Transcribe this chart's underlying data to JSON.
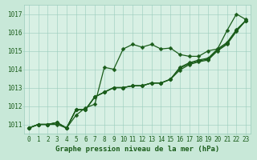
{
  "xlabel": "Graphe pression niveau de la mer (hPa)",
  "background_color": "#c8e8d8",
  "plot_bg_color": "#d8f0e4",
  "grid_color": "#99ccbb",
  "line_color": "#1a5c1a",
  "ylim": [
    1010.5,
    1017.5
  ],
  "xlim": [
    -0.5,
    23.5
  ],
  "yticks": [
    1011,
    1012,
    1013,
    1014,
    1015,
    1016,
    1017
  ],
  "xticks": [
    0,
    1,
    2,
    3,
    4,
    5,
    6,
    7,
    8,
    9,
    10,
    11,
    12,
    13,
    14,
    15,
    16,
    17,
    18,
    19,
    20,
    21,
    22,
    23
  ],
  "series": [
    [
      1010.8,
      1011.0,
      1011.0,
      1011.0,
      1010.8,
      1011.5,
      1011.9,
      1012.1,
      1014.1,
      1014.0,
      1015.1,
      1015.35,
      1015.2,
      1015.35,
      1015.1,
      1015.15,
      1014.8,
      1014.7,
      1014.7,
      1015.0,
      1015.1,
      1016.1,
      1017.0,
      1016.7
    ],
    [
      1010.8,
      1011.0,
      1011.0,
      1011.1,
      1010.8,
      1011.8,
      1011.8,
      1012.5,
      1012.75,
      1013.0,
      1013.0,
      1013.1,
      1013.1,
      1013.25,
      1013.25,
      1013.45,
      1013.95,
      1014.25,
      1014.4,
      1014.5,
      1015.0,
      1015.35,
      1016.05,
      1016.65
    ],
    [
      1010.8,
      1011.0,
      1011.0,
      1011.1,
      1010.8,
      1011.8,
      1011.8,
      1012.5,
      1012.75,
      1013.0,
      1013.0,
      1013.1,
      1013.1,
      1013.25,
      1013.25,
      1013.45,
      1014.05,
      1014.3,
      1014.45,
      1014.55,
      1015.05,
      1015.4,
      1016.1,
      1016.65
    ],
    [
      1010.8,
      1011.0,
      1011.0,
      1011.1,
      1010.8,
      1011.8,
      1011.8,
      1012.5,
      1012.75,
      1013.0,
      1013.0,
      1013.1,
      1013.1,
      1013.25,
      1013.25,
      1013.45,
      1014.1,
      1014.35,
      1014.5,
      1014.6,
      1015.1,
      1015.45,
      1016.15,
      1016.65
    ]
  ],
  "marker_size": 2.5,
  "line_width": 0.9,
  "font_size_ticks": 5.5,
  "font_size_label": 6.5
}
